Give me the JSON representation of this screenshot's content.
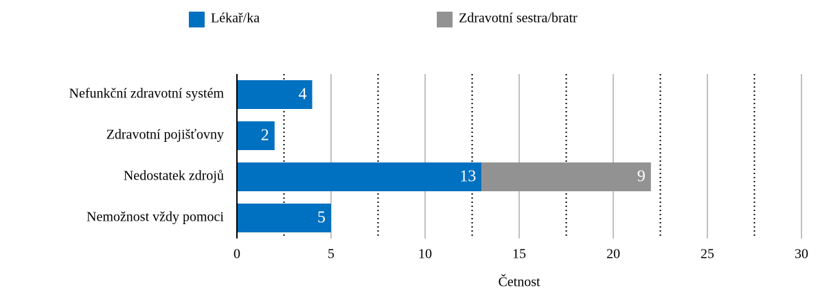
{
  "chart_data": {
    "type": "stacked_barh",
    "categories": [
      "Nefunkční zdravotní systém",
      "Zdravotní pojišťovny",
      "Nedostatek zdrojů",
      "Nemožnost vždy pomoci"
    ],
    "series": [
      {
        "name": "Lékař/ka",
        "color": "#0070c0",
        "values": [
          4,
          2,
          13,
          5
        ]
      },
      {
        "name": "Zdravotní sestra/bratr",
        "color": "#929292",
        "values": [
          null,
          null,
          9,
          null
        ]
      }
    ],
    "x_label": "Četnost",
    "xlim": [
      0,
      30
    ],
    "xticks": [
      0,
      5,
      10,
      15,
      20,
      25,
      30
    ],
    "xminorticks": [
      2.5,
      7.5,
      12.5,
      17.5,
      22.5,
      27.5
    ],
    "grid": true,
    "legend": "top"
  }
}
